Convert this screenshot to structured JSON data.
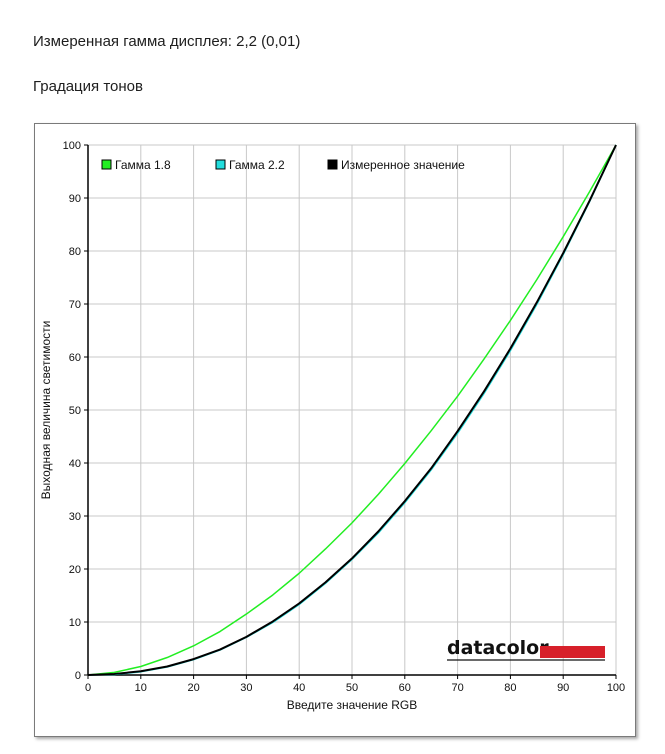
{
  "page": {
    "measured_gamma_text": "Измеренная гамма дисплея: 2,2 (0,01)",
    "section_title": "Градация тонов",
    "brand": "datacolor",
    "brand_color": "#d7202a"
  },
  "chart_data": {
    "type": "line",
    "title": "",
    "xlabel": "Введите значение RGB",
    "ylabel": "Выходная величина светимости",
    "xlim": [
      0,
      100
    ],
    "ylim": [
      0,
      100
    ],
    "x_ticks": [
      0,
      10,
      20,
      30,
      40,
      50,
      60,
      70,
      80,
      90,
      100
    ],
    "y_ticks": [
      0,
      10,
      20,
      30,
      40,
      50,
      60,
      70,
      80,
      90,
      100
    ],
    "grid": true,
    "legend_position": "top-left",
    "series": [
      {
        "name": "Гамма 1.8",
        "color": "#22ee22",
        "x": [
          0,
          5,
          10,
          15,
          20,
          25,
          30,
          35,
          40,
          45,
          50,
          55,
          60,
          65,
          70,
          75,
          80,
          85,
          90,
          95,
          100
        ],
        "y": [
          0,
          0.5,
          1.6,
          3.3,
          5.5,
          8.2,
          11.5,
          15.1,
          19.2,
          23.8,
          28.7,
          34.1,
          39.9,
          46.1,
          52.6,
          59.6,
          66.9,
          74.6,
          82.7,
          91.2,
          100
        ]
      },
      {
        "name": "Гамма 2.2",
        "color": "#22dddd",
        "x": [
          0,
          5,
          10,
          15,
          20,
          25,
          30,
          35,
          40,
          45,
          50,
          55,
          60,
          65,
          70,
          75,
          80,
          85,
          90,
          95,
          100
        ],
        "y": [
          0,
          0.1,
          0.6,
          1.5,
          2.9,
          4.7,
          7.1,
          9.9,
          13.3,
          17.3,
          21.8,
          26.8,
          32.5,
          38.7,
          45.6,
          53.1,
          61.2,
          69.9,
          79.3,
          89.3,
          100
        ]
      },
      {
        "name": "Измеренное значение",
        "color": "#000000",
        "x": [
          0,
          5,
          10,
          15,
          20,
          25,
          30,
          35,
          40,
          45,
          50,
          55,
          60,
          65,
          70,
          75,
          80,
          85,
          90,
          95,
          100
        ],
        "y": [
          0,
          0.2,
          0.7,
          1.6,
          3.0,
          4.8,
          7.2,
          10.1,
          13.5,
          17.5,
          22.0,
          27.1,
          32.8,
          39.0,
          46.0,
          53.5,
          61.6,
          70.3,
          79.6,
          89.5,
          100
        ]
      }
    ]
  }
}
